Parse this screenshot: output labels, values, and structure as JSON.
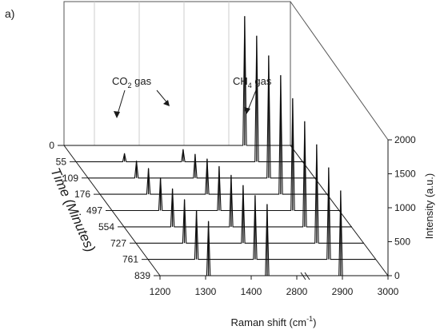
{
  "chart_data": {
    "type": "line",
    "panel_label": "a)",
    "xlabel": "Raman shift (cm",
    "xlabel_sup": "-1",
    "xlabel_close": ")",
    "ylabel": "Time (Minutes)",
    "zlabel": "Intensity (a.u.)",
    "x_ticks": [
      "1200",
      "1300",
      "1400",
      "2800",
      "2900",
      "3000"
    ],
    "x_segments": [
      {
        "from": 1200,
        "to": 1400
      },
      {
        "from": 2800,
        "to": 3000
      }
    ],
    "y_ticks": [
      "0",
      "55",
      "109",
      "176",
      "497",
      "554",
      "727",
      "761",
      "839"
    ],
    "zlim": [
      0,
      2000
    ],
    "z_ticks": [
      "0",
      "500",
      "1000",
      "1500",
      "2000"
    ],
    "annotations": [
      {
        "main": "CO",
        "sub": "2",
        "rest": " gas"
      },
      {
        "main": "CH",
        "sub": "4",
        "rest": " gas"
      }
    ],
    "series": [
      {
        "time": 0,
        "peaks": [
          {
            "x": 1285,
            "z": 0
          },
          {
            "x": 1388,
            "z": 0
          },
          {
            "x": 2917,
            "z": 1900
          }
        ]
      },
      {
        "time": 55,
        "peaks": [
          {
            "x": 1285,
            "z": 120
          },
          {
            "x": 1388,
            "z": 180
          },
          {
            "x": 2917,
            "z": 1850
          }
        ]
      },
      {
        "time": 109,
        "peaks": [
          {
            "x": 1285,
            "z": 250
          },
          {
            "x": 1388,
            "z": 350
          },
          {
            "x": 2917,
            "z": 1800
          }
        ]
      },
      {
        "time": 176,
        "peaks": [
          {
            "x": 1285,
            "z": 380
          },
          {
            "x": 1388,
            "z": 520
          },
          {
            "x": 2917,
            "z": 1750
          }
        ]
      },
      {
        "time": 497,
        "peaks": [
          {
            "x": 1285,
            "z": 480
          },
          {
            "x": 1388,
            "z": 650
          },
          {
            "x": 2917,
            "z": 1650
          }
        ]
      },
      {
        "time": 554,
        "peaks": [
          {
            "x": 1285,
            "z": 560
          },
          {
            "x": 1388,
            "z": 760
          },
          {
            "x": 2917,
            "z": 1550
          }
        ]
      },
      {
        "time": 727,
        "peaks": [
          {
            "x": 1285,
            "z": 640
          },
          {
            "x": 1388,
            "z": 850
          },
          {
            "x": 2917,
            "z": 1450
          }
        ]
      },
      {
        "time": 761,
        "peaks": [
          {
            "x": 1285,
            "z": 720
          },
          {
            "x": 1388,
            "z": 940
          },
          {
            "x": 2917,
            "z": 1350
          }
        ]
      },
      {
        "time": 839,
        "peaks": [
          {
            "x": 1285,
            "z": 800
          },
          {
            "x": 1388,
            "z": 1050
          },
          {
            "x": 2917,
            "z": 1250
          }
        ]
      }
    ]
  }
}
